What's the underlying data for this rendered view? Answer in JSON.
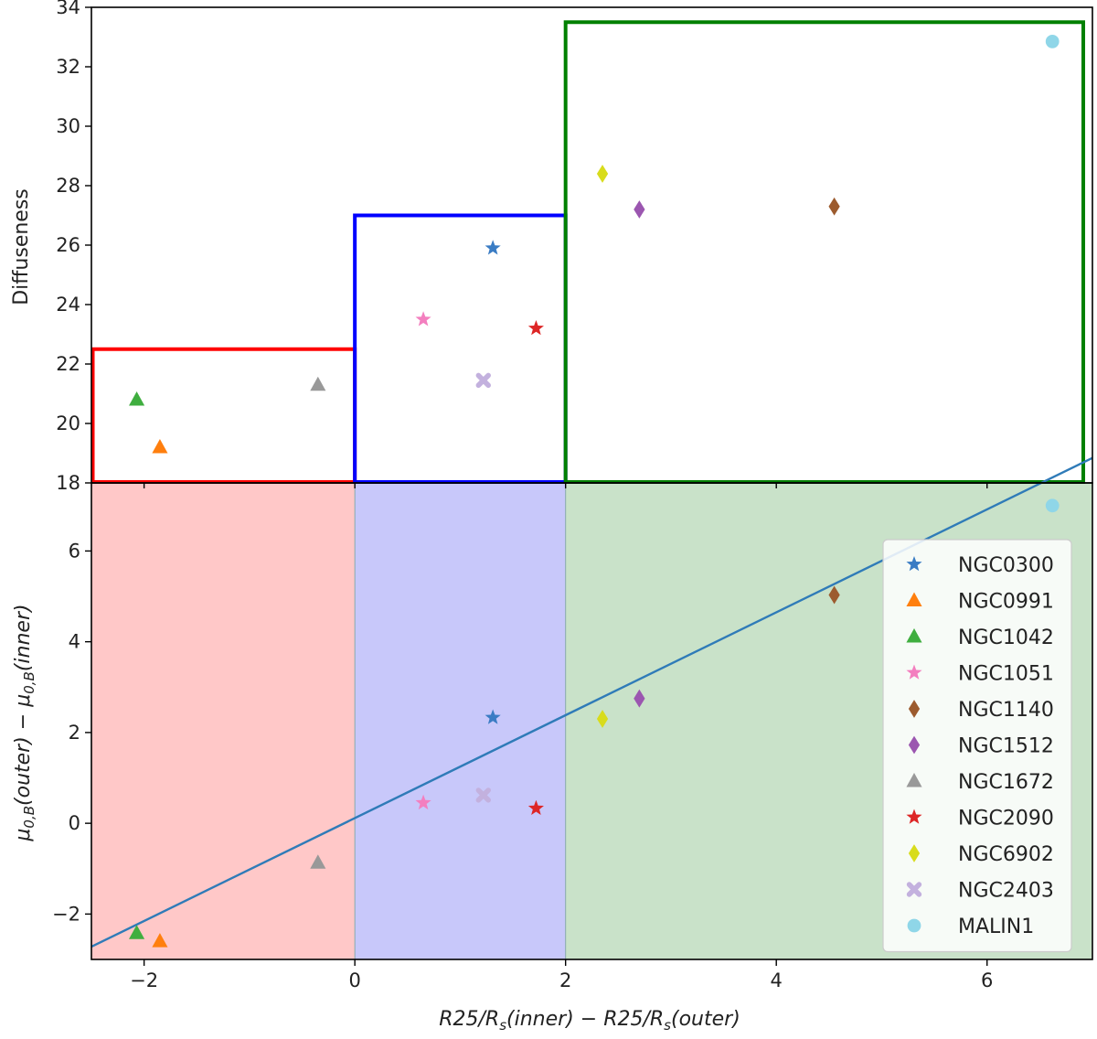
{
  "chart_data": [
    {
      "type": "scatter",
      "name": "top-panel",
      "xlim": [
        -2.5,
        7.0
      ],
      "ylim": [
        18,
        34
      ],
      "xlabel": "",
      "ylabel": "Diffuseness",
      "yticks": [
        18,
        20,
        22,
        24,
        26,
        28,
        30,
        32,
        34
      ],
      "boxes": [
        {
          "name": "red-box",
          "x0": -2.5,
          "x1": 0,
          "y0": 18,
          "y1": 22.5,
          "color": "#ff0000"
        },
        {
          "name": "blue-box",
          "x0": 0,
          "x1": 2,
          "y0": 18,
          "y1": 27.0,
          "color": "#0000ff"
        },
        {
          "name": "green-box",
          "x0": 2,
          "x1": 7.0,
          "y0": 18,
          "y1": 33.5,
          "color": "#008000"
        }
      ],
      "series": [
        {
          "name": "NGC0300",
          "marker": "star",
          "color": "#3a7cc4",
          "x": 1.31,
          "y": 25.9
        },
        {
          "name": "NGC0991",
          "marker": "triangle",
          "color": "#ff7f0e",
          "x": -1.85,
          "y": 19.2
        },
        {
          "name": "NGC1042",
          "marker": "triangle",
          "color": "#3fae3f",
          "x": -2.07,
          "y": 20.8
        },
        {
          "name": "NGC1051",
          "marker": "star",
          "color": "#f37fbf",
          "x": 0.65,
          "y": 23.5
        },
        {
          "name": "NGC1140",
          "marker": "diamond",
          "color": "#9c5b2e",
          "x": 4.55,
          "y": 27.3
        },
        {
          "name": "NGC1512",
          "marker": "diamond",
          "color": "#9b56b0",
          "x": 2.7,
          "y": 27.2
        },
        {
          "name": "NGC1672",
          "marker": "triangle",
          "color": "#999999",
          "x": -0.35,
          "y": 21.3
        },
        {
          "name": "NGC2090",
          "marker": "star",
          "color": "#dd2626",
          "x": 1.72,
          "y": 23.2
        },
        {
          "name": "NGC6902",
          "marker": "diamond",
          "color": "#d8dc1c",
          "x": 2.35,
          "y": 28.4
        },
        {
          "name": "NGC2403",
          "marker": "x",
          "color": "#c3b1de",
          "x": 1.22,
          "y": 21.45
        },
        {
          "name": "MALIN1",
          "marker": "circle",
          "color": "#8fd6e8",
          "x": 6.62,
          "y": 32.85
        }
      ]
    },
    {
      "type": "scatter",
      "name": "bottom-panel",
      "xlim": [
        -2.5,
        7.0
      ],
      "ylim": [
        -3,
        7.5
      ],
      "xlabel": "R25/R_s(inner) − R25/R_s(outer)",
      "ylabel": "μ_{0,B}(outer) − μ_{0,B}(inner)",
      "xticks": [
        -2,
        0,
        2,
        4,
        6
      ],
      "yticks": [
        -2,
        0,
        2,
        4,
        6
      ],
      "top_label": "18",
      "regions": [
        {
          "name": "red-region",
          "x0": -2.5,
          "x1": 0,
          "color": "#ff9a9a"
        },
        {
          "name": "blue-region",
          "x0": 0,
          "x1": 2,
          "color": "#9a9af5"
        },
        {
          "name": "green-region",
          "x0": 2,
          "x1": 7.0,
          "color": "#9dcb9d"
        }
      ],
      "fit_line": {
        "x": [
          -2.5,
          7.0
        ],
        "y": [
          -2.72,
          8.05
        ],
        "color": "#2f7bb8"
      },
      "series": [
        {
          "name": "NGC0300",
          "marker": "star",
          "color": "#3a7cc4",
          "x": 1.31,
          "y": 2.33
        },
        {
          "name": "NGC0991",
          "marker": "triangle",
          "color": "#ff7f0e",
          "x": -1.85,
          "y": -2.6
        },
        {
          "name": "NGC1042",
          "marker": "triangle",
          "color": "#3fae3f",
          "x": -2.07,
          "y": -2.42
        },
        {
          "name": "NGC1051",
          "marker": "star",
          "color": "#f37fbf",
          "x": 0.65,
          "y": 0.45
        },
        {
          "name": "NGC1140",
          "marker": "diamond",
          "color": "#9c5b2e",
          "x": 4.55,
          "y": 5.03
        },
        {
          "name": "NGC1512",
          "marker": "diamond",
          "color": "#9b56b0",
          "x": 2.7,
          "y": 2.75
        },
        {
          "name": "NGC1672",
          "marker": "triangle",
          "color": "#999999",
          "x": -0.35,
          "y": -0.87
        },
        {
          "name": "NGC2090",
          "marker": "star",
          "color": "#dd2626",
          "x": 1.72,
          "y": 0.33
        },
        {
          "name": "NGC6902",
          "marker": "diamond",
          "color": "#d8dc1c",
          "x": 2.35,
          "y": 2.3
        },
        {
          "name": "NGC2403",
          "marker": "x",
          "color": "#c3b1de",
          "x": 1.22,
          "y": 0.62
        },
        {
          "name": "MALIN1",
          "marker": "circle",
          "color": "#8fd6e8",
          "x": 6.62,
          "y": 7.0
        }
      ],
      "legend": {
        "placement": "right",
        "entries": [
          {
            "label": "NGC0300",
            "marker": "star",
            "color": "#3a7cc4"
          },
          {
            "label": "NGC0991",
            "marker": "triangle",
            "color": "#ff7f0e"
          },
          {
            "label": "NGC1042",
            "marker": "triangle",
            "color": "#3fae3f"
          },
          {
            "label": "NGC1051",
            "marker": "star",
            "color": "#f37fbf"
          },
          {
            "label": "NGC1140",
            "marker": "diamond",
            "color": "#9c5b2e"
          },
          {
            "label": "NGC1512",
            "marker": "diamond",
            "color": "#9b56b0"
          },
          {
            "label": "NGC1672",
            "marker": "triangle",
            "color": "#999999"
          },
          {
            "label": "NGC2090",
            "marker": "star",
            "color": "#dd2626"
          },
          {
            "label": "NGC6902",
            "marker": "diamond",
            "color": "#d8dc1c"
          },
          {
            "label": "NGC2403",
            "marker": "x",
            "color": "#c3b1de"
          },
          {
            "label": "MALIN1",
            "marker": "circle",
            "color": "#8fd6e8"
          }
        ]
      }
    }
  ]
}
